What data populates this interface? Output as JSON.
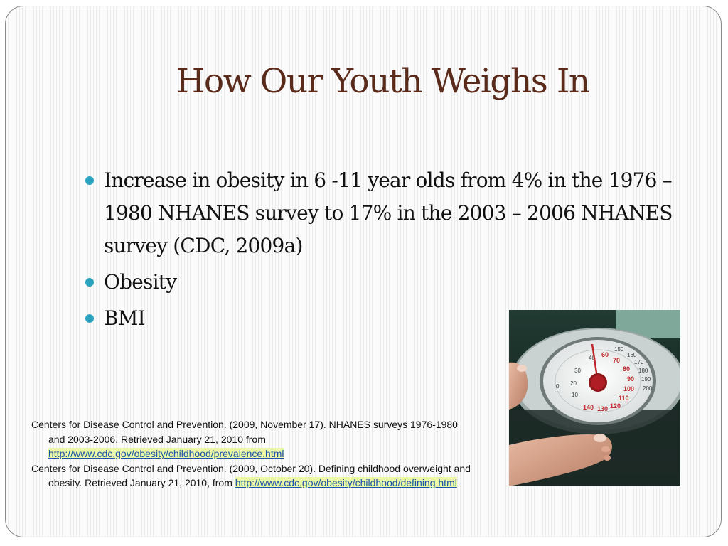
{
  "slide": {
    "title": "How Our Youth Weighs In",
    "bullets": [
      "Increase in obesity in 6 -11 year olds from 4% in the 1976 – 1980 NHANES survey to 17% in the 2003 – 2006 NHANES survey (CDC, 2009a)",
      "Obesity",
      "BMI"
    ],
    "references": [
      {
        "text": "Centers for Disease Control and Prevention.  (2009, November 17).  NHANES surveys 1976-1980 and 2003-2006.  Retrieved January 21, 2010 from ",
        "link": "http://www.cdc.gov/obesity/childhood/prevalence.html"
      },
      {
        "text": "Centers for Disease Control and Prevention.  (2009, October 20).  Defining childhood overweight and obesity.  Retrieved  January 21, 2010, from ",
        "link": "http://www.cdc.gov/obesity/childhood/defining.html"
      }
    ],
    "photo": {
      "scale_numbers": [
        "60",
        "70",
        "80",
        "90",
        "100",
        "110",
        "120",
        "130",
        "140",
        "150",
        "160",
        "170",
        "180",
        "190",
        "200",
        "40",
        "30",
        "20",
        "10",
        "0"
      ]
    },
    "colors": {
      "title": "#5a2a1b",
      "bullet_dot": "#2aa3bf",
      "link": "#1a55a8"
    }
  }
}
